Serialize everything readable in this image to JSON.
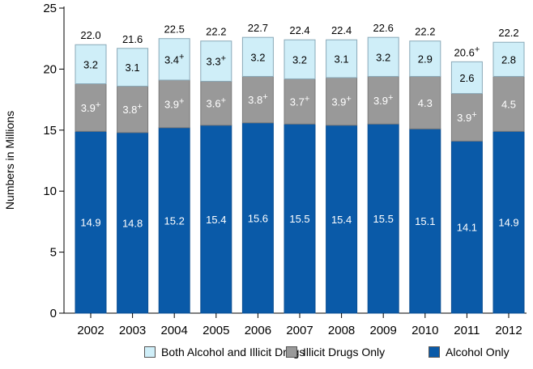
{
  "chart_data": {
    "type": "bar",
    "stacked": true,
    "categories": [
      "2002",
      "2003",
      "2004",
      "2005",
      "2006",
      "2007",
      "2008",
      "2009",
      "2010",
      "2011",
      "2012"
    ],
    "series": [
      {
        "name": "Alcohol Only",
        "color": "#0a5aa8",
        "values": [
          14.9,
          14.8,
          15.2,
          15.4,
          15.6,
          15.5,
          15.4,
          15.5,
          15.1,
          14.1,
          14.9
        ],
        "labels": [
          "14.9",
          "14.8",
          "15.2",
          "15.4",
          "15.6",
          "15.5",
          "15.4",
          "15.5",
          "15.1",
          "14.1",
          "14.9"
        ]
      },
      {
        "name": "Illicit Drugs Only",
        "color": "#999999",
        "values": [
          3.9,
          3.8,
          3.9,
          3.6,
          3.8,
          3.7,
          3.9,
          3.9,
          4.3,
          3.9,
          4.5
        ],
        "labels": [
          "3.9+",
          "3.8+",
          "3.9+",
          "3.6+",
          "3.8+",
          "3.7+",
          "3.9+",
          "3.9+",
          "4.3",
          "3.9+",
          "4.5"
        ]
      },
      {
        "name": "Both Alcohol and Illicit Drugs",
        "color": "#cfeef8",
        "values": [
          3.2,
          3.1,
          3.4,
          3.3,
          3.2,
          3.2,
          3.1,
          3.2,
          2.9,
          2.6,
          2.8
        ],
        "labels": [
          "3.2",
          "3.1",
          "3.4+",
          "3.3+",
          "3.2",
          "3.2",
          "3.1",
          "3.2",
          "2.9",
          "2.6",
          "2.8"
        ]
      }
    ],
    "totals": [
      22.0,
      21.6,
      22.5,
      22.2,
      22.7,
      22.4,
      22.4,
      22.6,
      22.2,
      20.6,
      22.2
    ],
    "total_labels": [
      "22.0",
      "21.6",
      "22.5",
      "22.2",
      "22.7",
      "22.4",
      "22.4",
      "22.6",
      "22.2",
      "20.6+",
      "22.2"
    ],
    "xlabel": "",
    "ylabel": "Numbers in Millions",
    "ylim": [
      0,
      25
    ],
    "yticks": [
      0,
      5,
      10,
      15,
      20,
      25
    ],
    "grid": false,
    "legend_position": "bottom",
    "legend_order": [
      "Both Alcohol and Illicit Drugs",
      "Illicit Drugs Only",
      "Alcohol Only"
    ]
  }
}
